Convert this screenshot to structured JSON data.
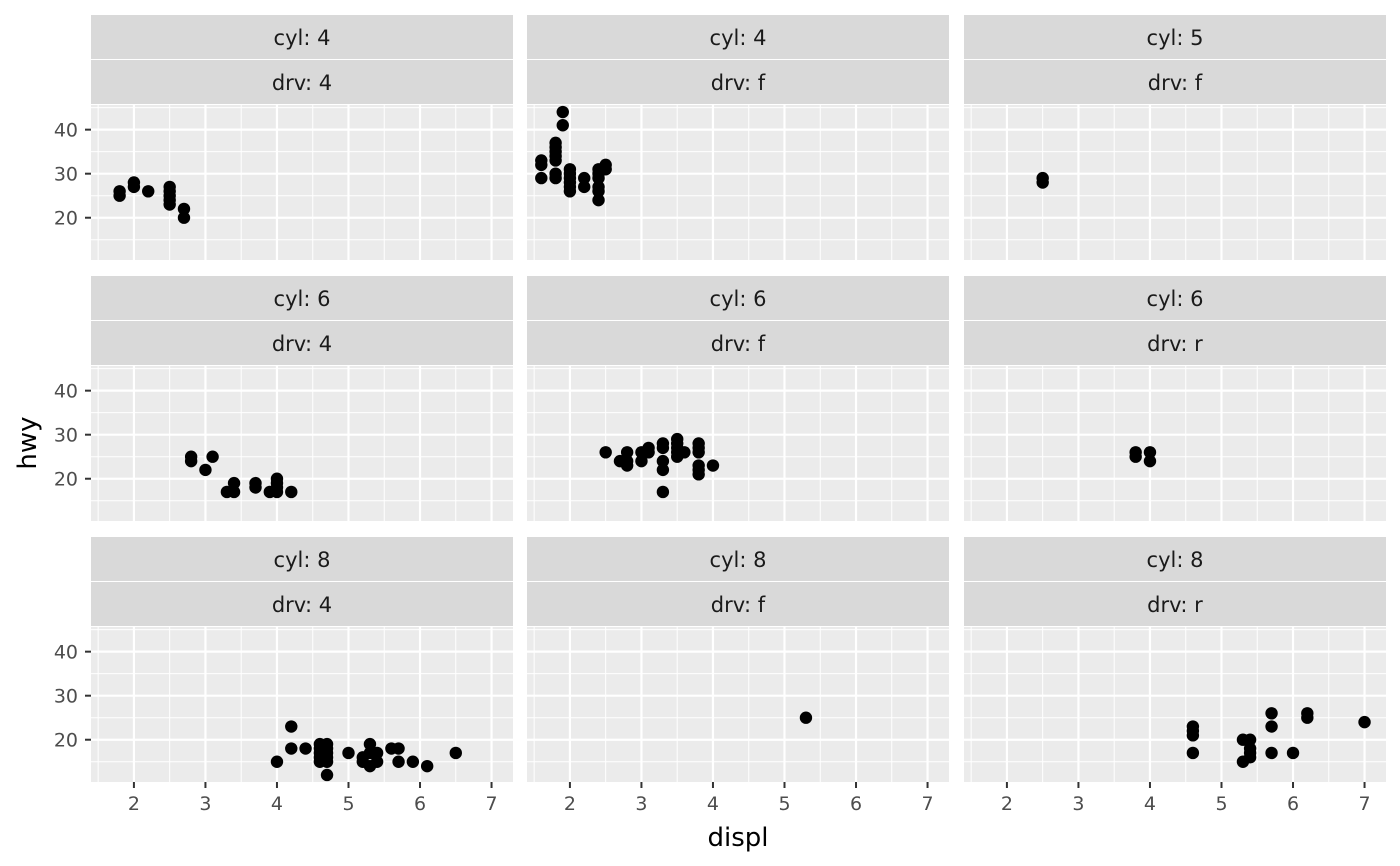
{
  "chart_data": {
    "type": "scatter",
    "facet_rows": "cyl",
    "facet_cols": "drv",
    "xlabel": "displ",
    "ylabel": "hwy",
    "xlim": [
      1.4,
      7.3
    ],
    "ylim": [
      10.4,
      45.6
    ],
    "x_ticks": [
      2,
      3,
      4,
      5,
      6,
      7
    ],
    "y_ticks": [
      20,
      30,
      40
    ],
    "grid": true,
    "colors": {
      "panel_bg": "#ebebeb",
      "strip_bg": "#d9d9d9",
      "grid_major": "#ffffff",
      "point": "#000000",
      "tick": "#333333",
      "tick_label": "#4d4d4d"
    },
    "panels": [
      {
        "strip_top": "cyl: 4",
        "strip_bottom": "drv: 4",
        "points": [
          [
            1.8,
            25
          ],
          [
            1.8,
            26
          ],
          [
            2.0,
            27
          ],
          [
            2.0,
            28
          ],
          [
            2.2,
            26
          ],
          [
            2.5,
            23
          ],
          [
            2.5,
            24
          ],
          [
            2.5,
            25
          ],
          [
            2.5,
            26
          ],
          [
            2.5,
            27
          ],
          [
            2.7,
            20
          ],
          [
            2.7,
            22
          ]
        ]
      },
      {
        "strip_top": "cyl: 4",
        "strip_bottom": "drv: f",
        "points": [
          [
            1.6,
            29
          ],
          [
            1.6,
            32
          ],
          [
            1.6,
            33
          ],
          [
            1.8,
            29
          ],
          [
            1.8,
            30
          ],
          [
            1.8,
            33
          ],
          [
            1.8,
            34
          ],
          [
            1.8,
            35
          ],
          [
            1.8,
            36
          ],
          [
            1.8,
            37
          ],
          [
            1.9,
            41
          ],
          [
            1.9,
            44
          ],
          [
            2.0,
            26
          ],
          [
            2.0,
            27
          ],
          [
            2.0,
            28
          ],
          [
            2.0,
            29
          ],
          [
            2.0,
            30
          ],
          [
            2.0,
            31
          ],
          [
            2.2,
            27
          ],
          [
            2.2,
            29
          ],
          [
            2.4,
            24
          ],
          [
            2.4,
            26
          ],
          [
            2.4,
            27
          ],
          [
            2.4,
            29
          ],
          [
            2.4,
            30
          ],
          [
            2.4,
            31
          ],
          [
            2.5,
            31
          ],
          [
            2.5,
            32
          ]
        ]
      },
      {
        "strip_top": "cyl: 5",
        "strip_bottom": "drv: f",
        "points": [
          [
            2.5,
            28
          ],
          [
            2.5,
            29
          ]
        ]
      },
      {
        "strip_top": "cyl: 6",
        "strip_bottom": "drv: 4",
        "points": [
          [
            2.8,
            24
          ],
          [
            2.8,
            25
          ],
          [
            3.0,
            22
          ],
          [
            3.1,
            25
          ],
          [
            3.3,
            17
          ],
          [
            3.4,
            17
          ],
          [
            3.4,
            19
          ],
          [
            3.7,
            18
          ],
          [
            3.7,
            19
          ],
          [
            3.9,
            17
          ],
          [
            4.0,
            17
          ],
          [
            4.0,
            18
          ],
          [
            4.0,
            19
          ],
          [
            4.0,
            20
          ],
          [
            4.2,
            17
          ]
        ]
      },
      {
        "strip_top": "cyl: 6",
        "strip_bottom": "drv: f",
        "points": [
          [
            2.5,
            26
          ],
          [
            2.7,
            24
          ],
          [
            2.8,
            23
          ],
          [
            2.8,
            24
          ],
          [
            2.8,
            26
          ],
          [
            3.0,
            24
          ],
          [
            3.0,
            26
          ],
          [
            3.1,
            26
          ],
          [
            3.1,
            27
          ],
          [
            3.3,
            17
          ],
          [
            3.3,
            22
          ],
          [
            3.3,
            24
          ],
          [
            3.3,
            27
          ],
          [
            3.3,
            28
          ],
          [
            3.5,
            25
          ],
          [
            3.5,
            26
          ],
          [
            3.5,
            27
          ],
          [
            3.5,
            28
          ],
          [
            3.5,
            29
          ],
          [
            3.6,
            26
          ],
          [
            3.8,
            21
          ],
          [
            3.8,
            22
          ],
          [
            3.8,
            23
          ],
          [
            3.8,
            26
          ],
          [
            3.8,
            27
          ],
          [
            3.8,
            28
          ],
          [
            4.0,
            23
          ]
        ]
      },
      {
        "strip_top": "cyl: 6",
        "strip_bottom": "drv: r",
        "points": [
          [
            3.8,
            25
          ],
          [
            3.8,
            26
          ],
          [
            4.0,
            24
          ],
          [
            4.0,
            26
          ]
        ]
      },
      {
        "strip_top": "cyl: 8",
        "strip_bottom": "drv: 4",
        "points": [
          [
            4.0,
            15
          ],
          [
            4.2,
            23
          ],
          [
            4.2,
            18
          ],
          [
            4.4,
            18
          ],
          [
            4.6,
            15
          ],
          [
            4.6,
            16
          ],
          [
            4.6,
            17
          ],
          [
            4.6,
            18
          ],
          [
            4.6,
            19
          ],
          [
            4.7,
            12
          ],
          [
            4.7,
            15
          ],
          [
            4.7,
            16
          ],
          [
            4.7,
            17
          ],
          [
            4.7,
            18
          ],
          [
            4.7,
            19
          ],
          [
            5.0,
            17
          ],
          [
            5.2,
            15
          ],
          [
            5.2,
            16
          ],
          [
            5.3,
            14
          ],
          [
            5.3,
            17
          ],
          [
            5.3,
            19
          ],
          [
            5.4,
            15
          ],
          [
            5.4,
            17
          ],
          [
            5.6,
            18
          ],
          [
            5.7,
            15
          ],
          [
            5.7,
            18
          ],
          [
            5.9,
            15
          ],
          [
            6.1,
            14
          ],
          [
            6.5,
            17
          ]
        ]
      },
      {
        "strip_top": "cyl: 8",
        "strip_bottom": "drv: f",
        "points": [
          [
            5.3,
            25
          ]
        ]
      },
      {
        "strip_top": "cyl: 8",
        "strip_bottom": "drv: r",
        "points": [
          [
            4.6,
            17
          ],
          [
            4.6,
            21
          ],
          [
            4.6,
            22
          ],
          [
            4.6,
            23
          ],
          [
            5.3,
            15
          ],
          [
            5.3,
            20
          ],
          [
            5.4,
            16
          ],
          [
            5.4,
            17
          ],
          [
            5.4,
            18
          ],
          [
            5.4,
            20
          ],
          [
            5.7,
            17
          ],
          [
            5.7,
            23
          ],
          [
            5.7,
            26
          ],
          [
            6.0,
            17
          ],
          [
            6.2,
            25
          ],
          [
            6.2,
            26
          ],
          [
            7.0,
            24
          ]
        ]
      }
    ]
  }
}
